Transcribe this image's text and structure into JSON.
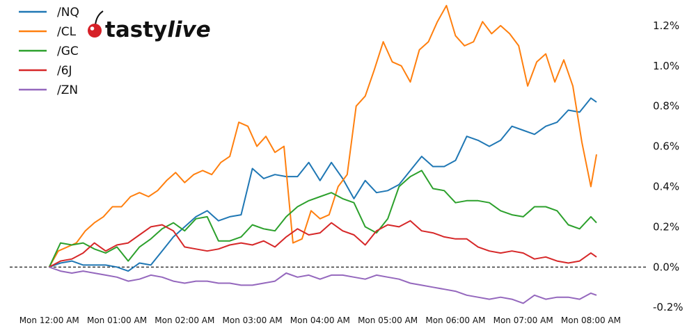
{
  "chart_data": {
    "type": "line",
    "title": "",
    "xlabel": "",
    "ylabel": "",
    "x_unit": "minutes since Mon 12:00 AM",
    "xlim": [
      -35,
      530
    ],
    "ylim": [
      -0.22,
      1.3
    ],
    "x_ticks": [
      {
        "x": 0,
        "label": "Mon 12:00 AM"
      },
      {
        "x": 60,
        "label": "Mon 01:00 AM"
      },
      {
        "x": 120,
        "label": "Mon 02:00 AM"
      },
      {
        "x": 180,
        "label": "Mon 03:00 AM"
      },
      {
        "x": 240,
        "label": "Mon 04:00 AM"
      },
      {
        "x": 300,
        "label": "Mon 05:00 AM"
      },
      {
        "x": 360,
        "label": "Mon 06:00 AM"
      },
      {
        "x": 420,
        "label": "Mon 07:00 AM"
      },
      {
        "x": 480,
        "label": "Mon 08:00 AM"
      }
    ],
    "y_ticks": [
      {
        "y": -0.2,
        "label": "-0.2%"
      },
      {
        "y": 0.0,
        "label": "0.0%"
      },
      {
        "y": 0.2,
        "label": "0.2%"
      },
      {
        "y": 0.4,
        "label": "0.4%"
      },
      {
        "y": 0.6,
        "label": "0.6%"
      },
      {
        "y": 0.8,
        "label": "0.8%"
      },
      {
        "y": 1.0,
        "label": "1.0%"
      },
      {
        "y": 1.2,
        "label": "1.2%"
      }
    ],
    "zero_line": "dashed",
    "legend_position": "top-left",
    "series": [
      {
        "name": "/NQ",
        "color": "#1f77b4",
        "x": [
          0,
          10,
          20,
          30,
          40,
          50,
          60,
          70,
          80,
          90,
          100,
          110,
          120,
          130,
          140,
          150,
          160,
          170,
          180,
          190,
          200,
          210,
          220,
          230,
          240,
          250,
          260,
          270,
          280,
          290,
          300,
          310,
          320,
          330,
          340,
          350,
          360,
          370,
          380,
          390,
          400,
          410,
          420,
          430,
          440,
          450,
          460,
          470,
          480,
          485
        ],
        "values": [
          0.0,
          0.02,
          0.03,
          0.01,
          0.01,
          0.01,
          0.0,
          -0.02,
          0.02,
          0.01,
          0.08,
          0.15,
          0.2,
          0.25,
          0.28,
          0.23,
          0.25,
          0.26,
          0.49,
          0.44,
          0.46,
          0.45,
          0.45,
          0.52,
          0.43,
          0.52,
          0.44,
          0.34,
          0.43,
          0.37,
          0.38,
          0.41,
          0.48,
          0.55,
          0.5,
          0.5,
          0.53,
          0.65,
          0.63,
          0.6,
          0.63,
          0.7,
          0.68,
          0.66,
          0.7,
          0.72,
          0.78,
          0.77,
          0.84,
          0.82
        ]
      },
      {
        "name": "/CL",
        "color": "#ff7f0e",
        "x": [
          0,
          8,
          16,
          24,
          32,
          40,
          48,
          56,
          64,
          72,
          80,
          88,
          96,
          104,
          112,
          120,
          128,
          136,
          144,
          152,
          160,
          168,
          176,
          184,
          192,
          200,
          208,
          216,
          224,
          232,
          240,
          248,
          256,
          264,
          272,
          280,
          288,
          296,
          304,
          312,
          320,
          328,
          336,
          344,
          352,
          360,
          368,
          376,
          384,
          392,
          400,
          408,
          416,
          424,
          432,
          440,
          448,
          456,
          464,
          472,
          480,
          485
        ],
        "values": [
          0.0,
          0.08,
          0.1,
          0.12,
          0.18,
          0.22,
          0.25,
          0.3,
          0.3,
          0.35,
          0.37,
          0.35,
          0.38,
          0.43,
          0.47,
          0.42,
          0.46,
          0.48,
          0.46,
          0.52,
          0.55,
          0.72,
          0.7,
          0.6,
          0.65,
          0.57,
          0.6,
          0.12,
          0.14,
          0.28,
          0.24,
          0.26,
          0.4,
          0.46,
          0.8,
          0.85,
          0.98,
          1.12,
          1.02,
          1.0,
          0.92,
          1.08,
          1.12,
          1.22,
          1.3,
          1.15,
          1.1,
          1.12,
          1.22,
          1.16,
          1.2,
          1.16,
          1.1,
          0.9,
          1.02,
          1.06,
          0.92,
          1.03,
          0.9,
          0.62,
          0.4,
          0.56
        ]
      },
      {
        "name": "/GC",
        "color": "#2ca02c",
        "x": [
          0,
          10,
          20,
          30,
          40,
          50,
          60,
          70,
          80,
          90,
          100,
          110,
          120,
          130,
          140,
          150,
          160,
          170,
          180,
          190,
          200,
          210,
          220,
          230,
          240,
          250,
          260,
          270,
          280,
          290,
          300,
          310,
          320,
          330,
          340,
          350,
          360,
          370,
          380,
          390,
          400,
          410,
          420,
          430,
          440,
          450,
          460,
          470,
          480,
          485
        ],
        "values": [
          0.0,
          0.12,
          0.11,
          0.12,
          0.09,
          0.07,
          0.1,
          0.03,
          0.1,
          0.14,
          0.19,
          0.22,
          0.18,
          0.24,
          0.25,
          0.13,
          0.13,
          0.15,
          0.21,
          0.19,
          0.18,
          0.25,
          0.3,
          0.33,
          0.35,
          0.37,
          0.34,
          0.32,
          0.2,
          0.17,
          0.24,
          0.4,
          0.45,
          0.48,
          0.39,
          0.38,
          0.32,
          0.33,
          0.33,
          0.32,
          0.28,
          0.26,
          0.25,
          0.3,
          0.3,
          0.28,
          0.21,
          0.19,
          0.25,
          0.22
        ]
      },
      {
        "name": "/6J",
        "color": "#d62728",
        "x": [
          0,
          10,
          20,
          30,
          40,
          50,
          60,
          70,
          80,
          90,
          100,
          110,
          120,
          130,
          140,
          150,
          160,
          170,
          180,
          190,
          200,
          210,
          220,
          230,
          240,
          250,
          260,
          270,
          280,
          290,
          300,
          310,
          320,
          330,
          340,
          350,
          360,
          370,
          380,
          390,
          400,
          410,
          420,
          430,
          440,
          450,
          460,
          470,
          480,
          485
        ],
        "values": [
          0.0,
          0.03,
          0.04,
          0.07,
          0.12,
          0.08,
          0.11,
          0.12,
          0.16,
          0.2,
          0.21,
          0.18,
          0.1,
          0.09,
          0.08,
          0.09,
          0.11,
          0.12,
          0.11,
          0.13,
          0.1,
          0.15,
          0.19,
          0.16,
          0.17,
          0.22,
          0.18,
          0.16,
          0.11,
          0.18,
          0.21,
          0.2,
          0.23,
          0.18,
          0.17,
          0.15,
          0.14,
          0.14,
          0.1,
          0.08,
          0.07,
          0.08,
          0.07,
          0.04,
          0.05,
          0.03,
          0.02,
          0.03,
          0.07,
          0.05
        ]
      },
      {
        "name": "/ZN",
        "color": "#9467bd",
        "x": [
          0,
          10,
          20,
          30,
          40,
          50,
          60,
          70,
          80,
          90,
          100,
          110,
          120,
          130,
          140,
          150,
          160,
          170,
          180,
          190,
          200,
          210,
          220,
          230,
          240,
          250,
          260,
          270,
          280,
          290,
          300,
          310,
          320,
          330,
          340,
          350,
          360,
          370,
          380,
          390,
          400,
          410,
          420,
          430,
          440,
          450,
          460,
          470,
          480,
          485
        ],
        "values": [
          0.0,
          -0.02,
          -0.03,
          -0.02,
          -0.03,
          -0.04,
          -0.05,
          -0.07,
          -0.06,
          -0.04,
          -0.05,
          -0.07,
          -0.08,
          -0.07,
          -0.07,
          -0.08,
          -0.08,
          -0.09,
          -0.09,
          -0.08,
          -0.07,
          -0.03,
          -0.05,
          -0.04,
          -0.06,
          -0.04,
          -0.04,
          -0.05,
          -0.06,
          -0.04,
          -0.05,
          -0.06,
          -0.08,
          -0.09,
          -0.1,
          -0.11,
          -0.12,
          -0.14,
          -0.15,
          -0.16,
          -0.15,
          -0.16,
          -0.18,
          -0.14,
          -0.16,
          -0.15,
          -0.15,
          -0.16,
          -0.13,
          -0.14
        ]
      }
    ]
  },
  "logo": {
    "brand_bold": "tasty",
    "brand_italic": "live"
  }
}
